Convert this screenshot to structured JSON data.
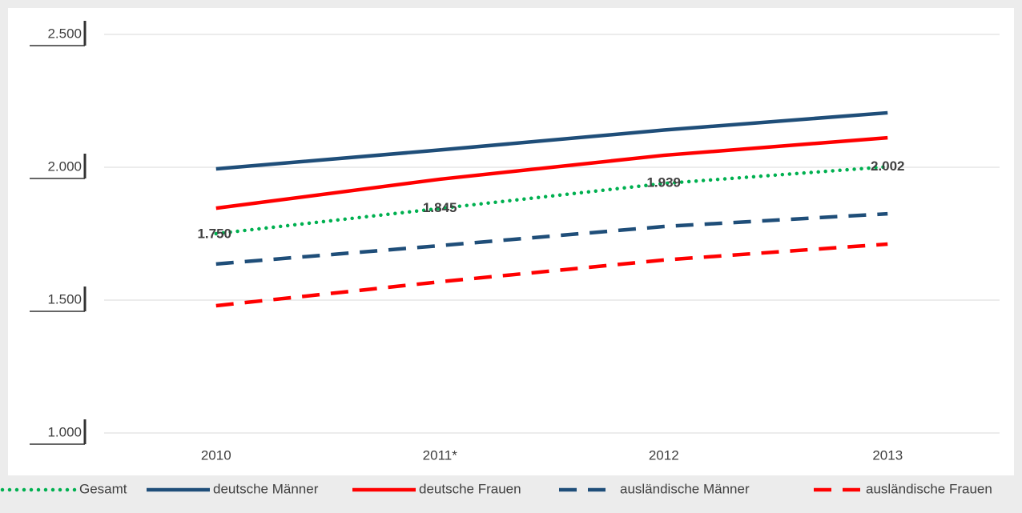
{
  "chart_data": {
    "type": "line",
    "categories": [
      "2010",
      "2011*",
      "2012",
      "2013"
    ],
    "ylim": [
      1000,
      2500
    ],
    "yticks": [
      {
        "value": 1000,
        "label": "1.000"
      },
      {
        "value": 1500,
        "label": "1.500"
      },
      {
        "value": 2000,
        "label": "2.000"
      },
      {
        "value": 2500,
        "label": "2.500"
      }
    ],
    "grid": true,
    "legend": "bottom",
    "series": [
      {
        "name": "Gesamt",
        "color": "#00b050",
        "dash": "dotted",
        "values": [
          1750,
          1845,
          1939,
          2002
        ],
        "value_labels": [
          "1.750",
          "1.845",
          "1.939",
          "2.002"
        ]
      },
      {
        "name": "deutsche Männer",
        "color": "#1f4e79",
        "dash": "solid",
        "values": [
          1994,
          2065,
          2140,
          2205
        ]
      },
      {
        "name": "deutsche Frauen",
        "color": "#ff0000",
        "dash": "solid",
        "values": [
          1846,
          1955,
          2045,
          2111
        ]
      },
      {
        "name": "ausländische Männer",
        "color": "#1f4e79",
        "dash": "dashed",
        "values": [
          1636,
          1705,
          1777,
          1825
        ]
      },
      {
        "name": "ausländische Frauen",
        "color": "#ff0000",
        "dash": "dashed",
        "values": [
          1479,
          1569,
          1651,
          1711
        ]
      }
    ]
  }
}
